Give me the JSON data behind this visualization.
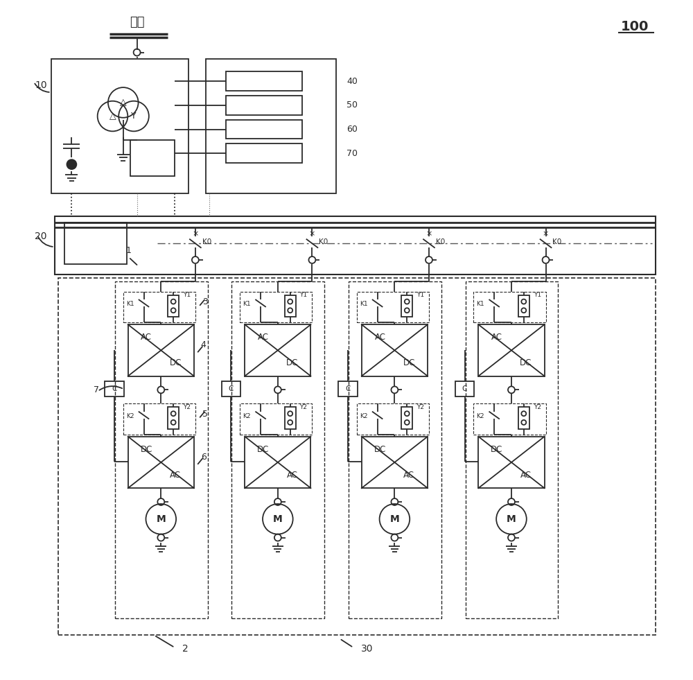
{
  "bg_color": "#ffffff",
  "line_color": "#2a2a2a",
  "title": "100",
  "label_diangwang": "电网",
  "label_10": "10",
  "label_20": "20",
  "label_1": "1",
  "label_2": "2",
  "label_3": "3",
  "label_4": "4",
  "label_5": "5",
  "label_6": "6",
  "label_7": "7",
  "label_30": "30",
  "labels_right": [
    "40",
    "50",
    "60",
    "70"
  ]
}
